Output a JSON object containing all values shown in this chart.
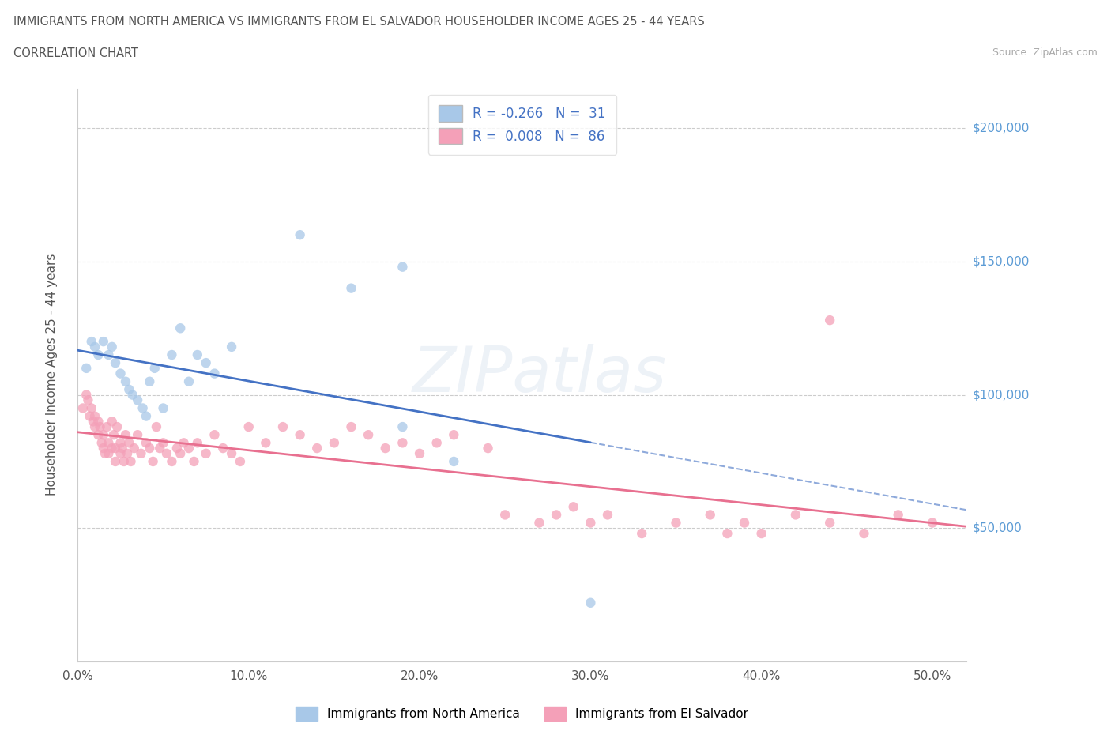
{
  "title_line1": "IMMIGRANTS FROM NORTH AMERICA VS IMMIGRANTS FROM EL SALVADOR HOUSEHOLDER INCOME AGES 25 - 44 YEARS",
  "title_line2": "CORRELATION CHART",
  "source": "Source: ZipAtlas.com",
  "ylabel": "Householder Income Ages 25 - 44 years",
  "blue_color": "#a8c8e8",
  "pink_color": "#f4a0b8",
  "blue_line_color": "#4472c4",
  "pink_line_color": "#e87090",
  "R_blue": -0.266,
  "N_blue": 31,
  "R_pink": 0.008,
  "N_pink": 86,
  "xlim": [
    0.0,
    0.52
  ],
  "ylim": [
    0,
    215000
  ],
  "yticks": [
    0,
    50000,
    100000,
    150000,
    200000
  ],
  "ytick_labels": [
    "",
    "$50,000",
    "$100,000",
    "$150,000",
    "$200,000"
  ],
  "xticks": [
    0.0,
    0.1,
    0.2,
    0.3,
    0.4,
    0.5
  ],
  "xtick_labels": [
    "0.0%",
    "10.0%",
    "20.0%",
    "30.0%",
    "40.0%",
    "50.0%"
  ],
  "legend_labels_bottom": [
    "Immigrants from North America",
    "Immigrants from El Salvador"
  ],
  "blue_scatter_x": [
    0.005,
    0.008,
    0.01,
    0.012,
    0.015,
    0.018,
    0.02,
    0.022,
    0.025,
    0.028,
    0.03,
    0.032,
    0.035,
    0.038,
    0.04,
    0.042,
    0.045,
    0.05,
    0.055,
    0.06,
    0.065,
    0.07,
    0.075,
    0.08,
    0.09,
    0.13,
    0.16,
    0.19,
    0.22,
    0.3,
    0.19
  ],
  "blue_scatter_y": [
    110000,
    120000,
    118000,
    115000,
    120000,
    115000,
    118000,
    112000,
    108000,
    105000,
    102000,
    100000,
    98000,
    95000,
    92000,
    105000,
    110000,
    95000,
    115000,
    125000,
    105000,
    115000,
    112000,
    108000,
    118000,
    160000,
    140000,
    88000,
    75000,
    22000,
    148000
  ],
  "pink_scatter_x": [
    0.003,
    0.005,
    0.006,
    0.007,
    0.008,
    0.009,
    0.01,
    0.01,
    0.012,
    0.012,
    0.013,
    0.014,
    0.015,
    0.015,
    0.016,
    0.017,
    0.018,
    0.018,
    0.02,
    0.02,
    0.021,
    0.022,
    0.022,
    0.023,
    0.025,
    0.025,
    0.026,
    0.027,
    0.028,
    0.029,
    0.03,
    0.031,
    0.033,
    0.035,
    0.037,
    0.04,
    0.042,
    0.044,
    0.046,
    0.048,
    0.05,
    0.052,
    0.055,
    0.058,
    0.06,
    0.062,
    0.065,
    0.068,
    0.07,
    0.075,
    0.08,
    0.085,
    0.09,
    0.095,
    0.1,
    0.11,
    0.12,
    0.13,
    0.14,
    0.15,
    0.16,
    0.17,
    0.18,
    0.19,
    0.2,
    0.21,
    0.22,
    0.24,
    0.25,
    0.27,
    0.28,
    0.29,
    0.3,
    0.31,
    0.33,
    0.35,
    0.37,
    0.38,
    0.39,
    0.4,
    0.42,
    0.44,
    0.46,
    0.48,
    0.5,
    0.44
  ],
  "pink_scatter_y": [
    95000,
    100000,
    98000,
    92000,
    95000,
    90000,
    88000,
    92000,
    85000,
    90000,
    88000,
    82000,
    85000,
    80000,
    78000,
    88000,
    82000,
    78000,
    90000,
    80000,
    85000,
    80000,
    75000,
    88000,
    82000,
    78000,
    80000,
    75000,
    85000,
    78000,
    82000,
    75000,
    80000,
    85000,
    78000,
    82000,
    80000,
    75000,
    88000,
    80000,
    82000,
    78000,
    75000,
    80000,
    78000,
    82000,
    80000,
    75000,
    82000,
    78000,
    85000,
    80000,
    78000,
    75000,
    88000,
    82000,
    88000,
    85000,
    80000,
    82000,
    88000,
    85000,
    80000,
    82000,
    78000,
    82000,
    85000,
    80000,
    55000,
    52000,
    55000,
    58000,
    52000,
    55000,
    48000,
    52000,
    55000,
    48000,
    52000,
    48000,
    55000,
    52000,
    48000,
    55000,
    52000,
    128000
  ]
}
